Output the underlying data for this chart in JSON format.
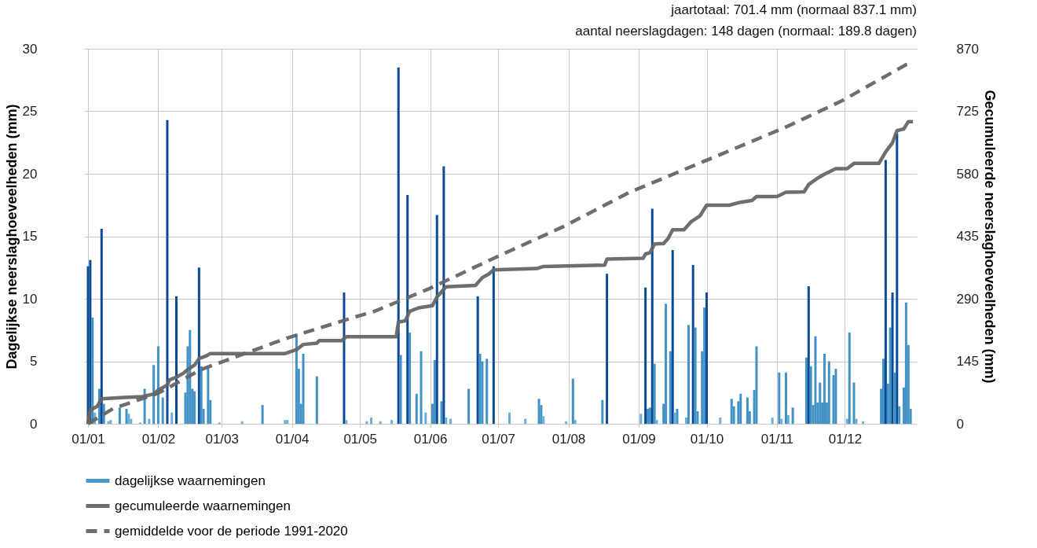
{
  "chart_data": {
    "type": "bar",
    "ylabel": "Dagelijkse neerslaghoeveelheden (mm)",
    "y2label": "Gecumuleerde neerslaghoeveelheden (mm)",
    "annotations": [
      "jaartotaal: 701.4 mm (normaal 837.1 mm)",
      "aantal neerslagdagen: 148 dagen (normaal: 189.8 dagen)"
    ],
    "xlim": [
      "--01-01",
      "--12-31"
    ],
    "xticks": [
      {
        "value": "--01-01",
        "label": "01/01"
      },
      {
        "value": "--02-01",
        "label": "01/02"
      },
      {
        "value": "--03-01",
        "label": "01/03"
      },
      {
        "value": "--04-01",
        "label": "01/04"
      },
      {
        "value": "--05-01",
        "label": "01/05"
      },
      {
        "value": "--06-01",
        "label": "01/06"
      },
      {
        "value": "--07-01",
        "label": "01/07"
      },
      {
        "value": "--08-01",
        "label": "01/08"
      },
      {
        "value": "--09-01",
        "label": "01/09"
      },
      {
        "value": "--10-01",
        "label": "01/10"
      },
      {
        "value": "--11-01",
        "label": "01/11"
      },
      {
        "value": "--12-01",
        "label": "01/12"
      }
    ],
    "ylim": [
      0,
      30
    ],
    "yticks": [
      0,
      5,
      10,
      15,
      20,
      25,
      30
    ],
    "y2lim": [
      0,
      870
    ],
    "y2ticks": [
      0,
      145,
      290,
      435,
      580,
      725,
      870
    ],
    "grid": true,
    "legend": "bottom left",
    "series": [
      {
        "name": "dagelijkse waarnemingen",
        "color": "#4292c6",
        "x": [
          "--01-01",
          "--01-02",
          "--01-03",
          "--01-04",
          "--01-06",
          "--01-07",
          "--01-08",
          "--01-10",
          "--01-11",
          "--01-15",
          "--01-18",
          "--01-19",
          "--01-20",
          "--01-24",
          "--01-26",
          "--01-28",
          "--01-30",
          "--02-01",
          "--02-03",
          "--02-05",
          "--02-07",
          "--02-09",
          "--02-13",
          "--02-14",
          "--02-15",
          "--02-16",
          "--02-17",
          "--02-19",
          "--02-20",
          "--02-21",
          "--02-23",
          "--02-24",
          "--02-28",
          "--03-10",
          "--03-19",
          "--03-29",
          "--03-30",
          "--04-03",
          "--04-04",
          "--04-05",
          "--04-06",
          "--04-12",
          "--04-24",
          "--04-25",
          "--05-04",
          "--05-06",
          "--05-10",
          "--05-15",
          "--05-18",
          "--05-19",
          "--05-22",
          "--05-23",
          "--05-26",
          "--05-28",
          "--05-30",
          "--06-02",
          "--06-03",
          "--06-04",
          "--06-06",
          "--06-07",
          "--06-08",
          "--06-10",
          "--06-18",
          "--06-22",
          "--06-23",
          "--06-24",
          "--06-26",
          "--06-29",
          "--07-06",
          "--07-13",
          "--07-19",
          "--07-20",
          "--07-21",
          "--07-31",
          "--08-03",
          "--08-04",
          "--08-16",
          "--08-18",
          "--09-02",
          "--09-04",
          "--09-05",
          "--09-06",
          "--09-07",
          "--09-08",
          "--09-09",
          "--09-12",
          "--09-13",
          "--09-15",
          "--09-16",
          "--09-17",
          "--09-18",
          "--09-22",
          "--09-23",
          "--09-25",
          "--09-26",
          "--09-27",
          "--09-29",
          "--09-30",
          "--10-01",
          "--10-07",
          "--10-12",
          "--10-13",
          "--10-15",
          "--10-16",
          "--10-19",
          "--10-20",
          "--10-22",
          "--10-23",
          "--10-30",
          "--11-02",
          "--11-03",
          "--11-05",
          "--11-06",
          "--11-08",
          "--11-14",
          "--11-15",
          "--11-16",
          "--11-17",
          "--11-18",
          "--11-19",
          "--11-20",
          "--11-21",
          "--11-22",
          "--11-23",
          "--11-24",
          "--11-26",
          "--11-27",
          "--12-02",
          "--12-03",
          "--12-05",
          "--12-06",
          "--12-09",
          "--12-17",
          "--12-18",
          "--12-19",
          "--12-20",
          "--12-21",
          "--12-22",
          "--12-23",
          "--12-24",
          "--12-25",
          "--12-27",
          "--12-28",
          "--12-29",
          "--12-30"
        ],
        "values": [
          12.6,
          13.1,
          8.5,
          0.9,
          2.8,
          15.6,
          1.6,
          0.2,
          0.3,
          1.3,
          1.2,
          0.8,
          0.4,
          0.1,
          2.8,
          0.4,
          4.7,
          6.2,
          2.1,
          24.3,
          0.9,
          10.2,
          2.5,
          6.2,
          7.5,
          2.8,
          2.6,
          12.5,
          4.6,
          1.2,
          4.4,
          1.9,
          0.1,
          0.2,
          1.5,
          0.3,
          0.3,
          7.2,
          4.4,
          1.6,
          5.6,
          3.8,
          10.5,
          0.3,
          0.2,
          0.5,
          0.2,
          0.3,
          28.5,
          5.5,
          18.3,
          7.3,
          2.4,
          5.8,
          0.9,
          1.6,
          5.1,
          16.7,
          1.8,
          20.6,
          0.5,
          0.4,
          2.8,
          10.2,
          5.6,
          5.0,
          5.2,
          12.6,
          0.9,
          0.4,
          2.0,
          1.5,
          0.6,
          0.2,
          3.6,
          0.3,
          1.9,
          12.0,
          0.8,
          10.9,
          1.2,
          1.3,
          17.2,
          4.8,
          0.3,
          1.6,
          9.6,
          5.8,
          13.9,
          0.9,
          1.2,
          0.5,
          7.9,
          12.7,
          7.7,
          1.0,
          5.8,
          9.3,
          10.5,
          0.5,
          2.0,
          1.4,
          1.8,
          2.4,
          2.1,
          1.0,
          2.7,
          6.2,
          0.5,
          4.1,
          0.4,
          4.1,
          0.7,
          1.3,
          5.3,
          11.0,
          4.6,
          1.5,
          7.0,
          1.7,
          3.3,
          1.7,
          5.6,
          1.7,
          5.0,
          3.9,
          4.4,
          0.4,
          7.3,
          3.3,
          0.4,
          0.2,
          2.8,
          5.2,
          21.1,
          3.2,
          7.7,
          10.5,
          4.1,
          23.2,
          1.4,
          2.9,
          9.7,
          6.3,
          1.2
        ],
        "colors": [
          "#0b4a97",
          "#0b4a97",
          "#4292c6",
          "#6baed6",
          "#4292c6",
          "#0b4a97",
          "#4292c6",
          "#6baed6",
          "#6baed6",
          "#4292c6",
          "#4292c6",
          "#6baed6",
          "#6baed6",
          "#6baed6",
          "#4292c6",
          "#6baed6",
          "#4292c6",
          "#4292c6",
          "#4292c6",
          "#0b4a97",
          "#6baed6",
          "#0b4a97",
          "#4292c6",
          "#4292c6",
          "#4292c6",
          "#4292c6",
          "#4292c6",
          "#0b4a97",
          "#4292c6",
          "#4292c6",
          "#4292c6",
          "#4292c6",
          "#6baed6",
          "#6baed6",
          "#4292c6",
          "#6baed6",
          "#6baed6",
          "#4292c6",
          "#4292c6",
          "#4292c6",
          "#4292c6",
          "#4292c6",
          "#0b4a97",
          "#6baed6",
          "#6baed6",
          "#6baed6",
          "#6baed6",
          "#6baed6",
          "#0b4a97",
          "#4292c6",
          "#0b4a97",
          "#4292c6",
          "#4292c6",
          "#4292c6",
          "#6baed6",
          "#4292c6",
          "#4292c6",
          "#0b4a97",
          "#4292c6",
          "#0b4a97",
          "#6baed6",
          "#6baed6",
          "#4292c6",
          "#0b4a97",
          "#4292c6",
          "#4292c6",
          "#4292c6",
          "#0b4a97",
          "#6baed6",
          "#6baed6",
          "#4292c6",
          "#4292c6",
          "#6baed6",
          "#6baed6",
          "#4292c6",
          "#6baed6",
          "#4292c6",
          "#0b4a97",
          "#6baed6",
          "#0b4a97",
          "#4292c6",
          "#4292c6",
          "#0b4a97",
          "#4292c6",
          "#6baed6",
          "#4292c6",
          "#4292c6",
          "#4292c6",
          "#0b4a97",
          "#6baed6",
          "#4292c6",
          "#6baed6",
          "#4292c6",
          "#0b4a97",
          "#4292c6",
          "#4292c6",
          "#4292c6",
          "#4292c6",
          "#0b4a97",
          "#6baed6",
          "#4292c6",
          "#4292c6",
          "#4292c6",
          "#4292c6",
          "#4292c6",
          "#4292c6",
          "#4292c6",
          "#4292c6",
          "#6baed6",
          "#4292c6",
          "#6baed6",
          "#4292c6",
          "#6baed6",
          "#4292c6",
          "#4292c6",
          "#0b4a97",
          "#4292c6",
          "#4292c6",
          "#4292c6",
          "#4292c6",
          "#4292c6",
          "#4292c6",
          "#4292c6",
          "#4292c6",
          "#4292c6",
          "#4292c6",
          "#4292c6",
          "#6baed6",
          "#4292c6",
          "#4292c6",
          "#6baed6",
          "#6baed6",
          "#4292c6",
          "#4292c6",
          "#0b4a97",
          "#4292c6",
          "#4292c6",
          "#0b4a97",
          "#4292c6",
          "#0b4a97",
          "#4292c6",
          "#4292c6",
          "#4292c6",
          "#4292c6",
          "#4292c6"
        ]
      },
      {
        "name": "gecumuleerde waarnemingen",
        "type": "line",
        "axis": "y2",
        "color": "#666666",
        "line_style": "solid",
        "x": [
          "--01-01",
          "--01-02",
          "--01-05",
          "--01-07",
          "--01-17",
          "--01-25",
          "--01-30",
          "--02-01",
          "--02-05",
          "--02-06",
          "--02-09",
          "--02-12",
          "--02-14",
          "--02-17",
          "--02-19",
          "--02-22",
          "--02-24",
          "--03-29",
          "--04-03",
          "--04-06",
          "--04-12",
          "--04-13",
          "--04-23",
          "--04-25",
          "--05-17",
          "--05-18",
          "--05-21",
          "--05-23",
          "--05-27",
          "--06-02",
          "--06-04",
          "--06-08",
          "--06-21",
          "--06-24",
          "--06-27",
          "--06-29",
          "--07-18",
          "--07-21",
          "--08-17",
          "--08-18",
          "--09-03",
          "--09-04",
          "--09-06",
          "--09-08",
          "--09-12",
          "--09-14",
          "--09-16",
          "--09-21",
          "--09-24",
          "--09-28",
          "--10-01",
          "--10-11",
          "--10-16",
          "--10-21",
          "--10-23",
          "--11-01",
          "--11-05",
          "--11-13",
          "--11-15",
          "--11-19",
          "--11-22",
          "--11-27",
          "--12-02",
          "--12-05",
          "--12-16",
          "--12-19",
          "--12-22",
          "--12-24",
          "--12-27",
          "--12-29",
          "--12-31"
        ],
        "values": [
          0,
          32,
          40,
          58,
          61,
          63,
          69,
          78,
          90,
          102,
          108,
          117,
          126,
          136,
          151,
          157,
          163,
          163,
          172,
          184,
          187,
          193,
          193,
          202,
          202,
          236,
          239,
          261,
          269,
          274,
          294,
          318,
          321,
          339,
          348,
          357,
          360,
          365,
          368,
          382,
          384,
          394,
          397,
          417,
          418,
          430,
          450,
          450,
          468,
          482,
          507,
          507,
          514,
          518,
          527,
          527,
          537,
          538,
          555,
          570,
          579,
          592,
          592,
          604,
          604,
          631,
          652,
          680,
          684,
          701,
          701
        ]
      },
      {
        "name": "gemiddelde voor de periode 1991-2020",
        "type": "line",
        "axis": "y2",
        "color": "#666666",
        "line_style": "dashed",
        "x": [
          "--01-01",
          "--01-12",
          "--02-01",
          "--02-20",
          "--03-30",
          "--04-29",
          "--05-07",
          "--05-31",
          "--06-27",
          "--07-30",
          "--08-28",
          "--09-29",
          "--11-04",
          "--11-30",
          "--12-11",
          "--12-28",
          "--12-31"
        ],
        "values": [
          0,
          35,
          71,
          126,
          199,
          248,
          260,
          312,
          379,
          458,
          537,
          607,
          686,
          750,
          783,
          833,
          837
        ]
      }
    ]
  }
}
